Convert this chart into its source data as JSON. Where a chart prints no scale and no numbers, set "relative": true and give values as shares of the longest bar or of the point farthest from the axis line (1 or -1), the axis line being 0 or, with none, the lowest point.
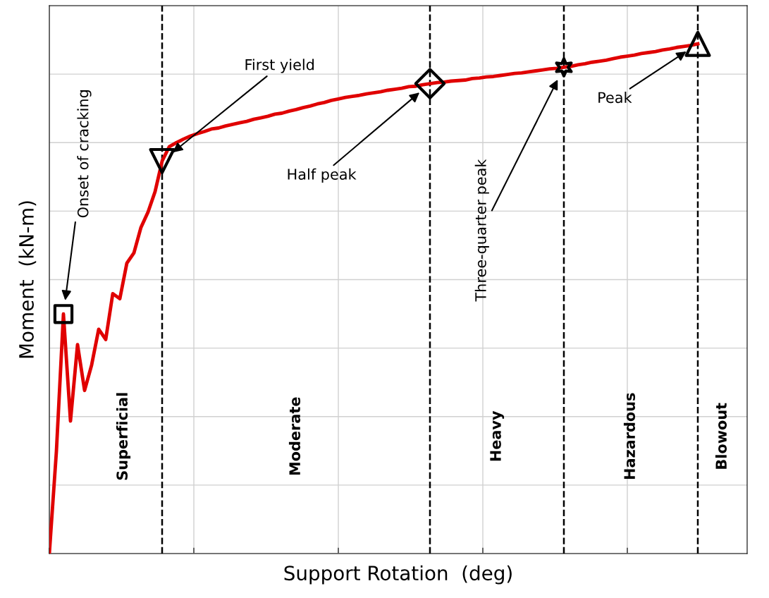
{
  "chart_data": {
    "type": "line",
    "relative": true,
    "xlabel": "Support Rotation  (deg)",
    "ylabel": "Moment  (kN-m)",
    "grid": true,
    "tick_labels": false,
    "categories": [
      null,
      null,
      null,
      null,
      null,
      null,
      null,
      null,
      null,
      null,
      null,
      null,
      null,
      null,
      null,
      null,
      null,
      null,
      null,
      null,
      null,
      null,
      null,
      null,
      null,
      null,
      null,
      null,
      null,
      null,
      null,
      null,
      null,
      null,
      null,
      null,
      null,
      null,
      null,
      null,
      null,
      null,
      null,
      null,
      null,
      null,
      null,
      null,
      null,
      null,
      null,
      null,
      null,
      null,
      null,
      null,
      null,
      null,
      null,
      null,
      null,
      null,
      null,
      null,
      null,
      null,
      null,
      null,
      null,
      null,
      null,
      null,
      null,
      null,
      null,
      null,
      null,
      null,
      null,
      null,
      null,
      null,
      null,
      null,
      null,
      null,
      null,
      null,
      null,
      null,
      null,
      null,
      null
    ],
    "series": [
      {
        "color": "#e00000",
        "values": [
          0,
          0.2,
          0.47,
          0.26,
          0.41,
          0.32,
          0.37,
          0.44,
          0.42,
          0.51,
          0.5,
          0.57,
          0.59,
          0.64,
          0.67,
          0.71,
          0.77,
          0.798,
          0.806,
          0.813,
          0.819,
          0.824,
          0.828,
          0.833,
          0.835,
          0.839,
          0.842,
          0.845,
          0.848,
          0.852,
          0.855,
          0.858,
          0.862,
          0.864,
          0.868,
          0.871,
          0.875,
          0.878,
          0.882,
          0.885,
          0.889,
          0.892,
          0.895,
          0.897,
          0.899,
          0.902,
          0.904,
          0.906,
          0.909,
          0.911,
          0.913,
          0.916,
          0.917,
          0.92,
          0.922,
          0.924,
          0.925,
          0.927,
          0.928,
          0.929,
          0.932,
          0.933,
          0.935,
          0.936,
          0.938,
          0.94,
          0.942,
          0.943,
          0.945,
          0.947,
          0.949,
          0.951,
          0.952,
          0.954,
          0.956,
          0.959,
          0.961,
          0.964,
          0.966,
          0.968,
          0.971,
          0.974,
          0.976,
          0.978,
          0.981,
          0.983,
          0.985,
          0.988,
          0.99,
          0.993,
          0.995,
          0.997,
          1
        ]
      }
    ],
    "annotations": [
      "Onset of cracking",
      "First yield",
      "Half peak",
      "Three-quarter peak",
      "Peak",
      "Superficial",
      "Moderate",
      "Heavy",
      "Hazardous",
      "Blowout"
    ]
  }
}
